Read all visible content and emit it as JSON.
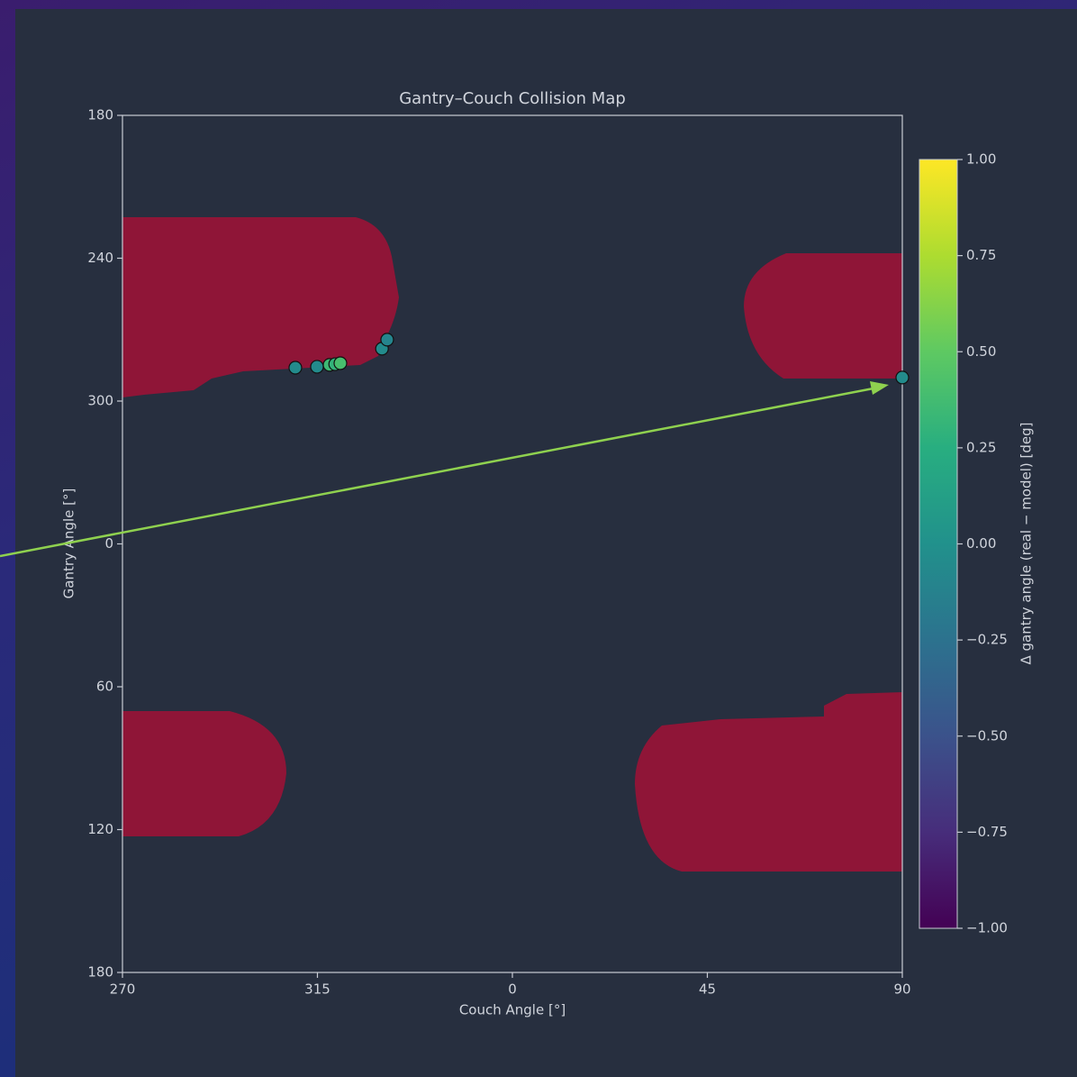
{
  "chart_data": {
    "type": "scatter",
    "title": "Gantry–Couch Collision Map",
    "x_label": "Couch Angle [°]",
    "y_label": "Gantry Angle [°]",
    "x": [
      -50.1,
      -45.1,
      -42.2,
      -40.9,
      -39.7,
      -30.1,
      -28.9,
      90.0
    ],
    "y": [
      286.0,
      285.6,
      284.8,
      284.5,
      284.1,
      278.0,
      274.2,
      290.1
    ],
    "color_values": [
      -0.05,
      -0.05,
      0.35,
      0.3,
      0.4,
      -0.05,
      -0.1,
      -0.05
    ],
    "colormap": "viridis",
    "xlim": [
      -90,
      90
    ],
    "xticks": [
      {
        "value": -90,
        "label": "270"
      },
      {
        "value": -45,
        "label": "315"
      },
      0,
      45,
      90
    ],
    "ylim": [
      540,
      180
    ],
    "yticks": [
      180,
      240,
      300,
      {
        "value": 360,
        "label": "0"
      },
      {
        "value": 420,
        "label": "60"
      },
      {
        "value": 480,
        "label": "120"
      },
      {
        "value": 540,
        "label": "180"
      }
    ],
    "colorbar": {
      "label": "Δ gantry angle (real − model) [deg]",
      "lim": [
        -1,
        1
      ],
      "ticks": [
        {
          "value": 1,
          "label": "1.00"
        },
        {
          "value": 0.75,
          "label": "0.75"
        },
        {
          "value": 0.5,
          "label": "0.50"
        },
        {
          "value": 0.25,
          "label": "0.25"
        },
        {
          "value": 0,
          "label": "0.00"
        },
        {
          "value": -0.25,
          "label": "−0.25"
        },
        {
          "value": -0.5,
          "label": "−0.50"
        },
        {
          "value": -0.75,
          "label": "−0.75"
        },
        {
          "value": -1,
          "label": "−1.00"
        }
      ]
    }
  }
}
